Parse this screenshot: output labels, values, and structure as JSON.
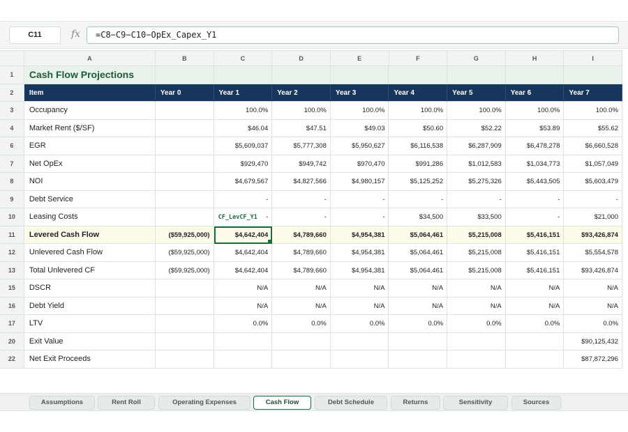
{
  "formula_bar": {
    "cell_ref": "C11",
    "fx_label": "fx",
    "formula": "=C8−C9−C10−OpEx_Capex_Y1"
  },
  "columns": [
    "A",
    "B",
    "C",
    "D",
    "E",
    "F",
    "G",
    "H",
    "I"
  ],
  "sheet": {
    "title_row": "1",
    "title": "Cash Flow Projections",
    "header_row": "2",
    "headers": [
      "Item",
      "Year 0",
      "Year 1",
      "Year 2",
      "Year 3",
      "Year 4",
      "Year 5",
      "Year 6",
      "Year 7"
    ],
    "named_range_tag": "CF_LevCF_Y1",
    "rows": [
      {
        "n": "3",
        "label": "Occupancy",
        "values": [
          "",
          "100.0%",
          "100.0%",
          "100.0%",
          "100.0%",
          "100.0%",
          "100.0%",
          "100.0%"
        ]
      },
      {
        "n": "4",
        "label": "Market Rent ($/SF)",
        "values": [
          "",
          "$46.04",
          "$47.51",
          "$49.03",
          "$50.60",
          "$52.22",
          "$53.89",
          "$55.62"
        ]
      },
      {
        "n": "6",
        "label": "EGR",
        "values": [
          "",
          "$5,609,037",
          "$5,777,308",
          "$5,950,627",
          "$6,116,538",
          "$6,287,909",
          "$6,478,278",
          "$6,660,528"
        ]
      },
      {
        "n": "7",
        "label": "Net OpEx",
        "values": [
          "",
          "$929,470",
          "$949,742",
          "$970,470",
          "$991,286",
          "$1,012,583",
          "$1,034,773",
          "$1,057,049"
        ]
      },
      {
        "n": "8",
        "label": "NOI",
        "values": [
          "",
          "$4,679,567",
          "$4,827,566",
          "$4,980,157",
          "$5,125,252",
          "$5,275,326",
          "$5,443,505",
          "$5,603,479"
        ]
      },
      {
        "n": "9",
        "label": "Debt Service",
        "values": [
          "",
          "-",
          "-",
          "-",
          "-",
          "-",
          "-",
          "-"
        ]
      },
      {
        "n": "10",
        "label": "Leasing Costs",
        "values": [
          "",
          "-",
          "-",
          "-",
          "$34,500",
          "$33,500",
          "-",
          "$21,000"
        ]
      },
      {
        "n": "11",
        "label": "Levered Cash Flow",
        "values": [
          "($59,925,000)",
          "$4,642,404",
          "$4,789,660",
          "$4,954,381",
          "$5,064,461",
          "$5,215,008",
          "$5,416,151",
          "$93,426,874"
        ]
      },
      {
        "n": "12",
        "label": "Unlevered Cash Flow",
        "values": [
          "($59,925,000)",
          "$4,642,404",
          "$4,789,660",
          "$4,954,381",
          "$5,064,461",
          "$5,215,008",
          "$5,416,151",
          "$5,554,578"
        ]
      },
      {
        "n": "13",
        "label": "Total Unlevered CF",
        "values": [
          "($59,925,000)",
          "$4,642,404",
          "$4,789,660",
          "$4,954,381",
          "$5,064,461",
          "$5,215,008",
          "$5,416,151",
          "$93,426,874"
        ]
      },
      {
        "n": "15",
        "label": "DSCR",
        "values": [
          "",
          "N/A",
          "N/A",
          "N/A",
          "N/A",
          "N/A",
          "N/A",
          "N/A"
        ]
      },
      {
        "n": "16",
        "label": "Debt Yield",
        "values": [
          "",
          "N/A",
          "N/A",
          "N/A",
          "N/A",
          "N/A",
          "N/A",
          "N/A"
        ]
      },
      {
        "n": "17",
        "label": "LTV",
        "values": [
          "",
          "0.0%",
          "0.0%",
          "0.0%",
          "0.0%",
          "0.0%",
          "0.0%",
          "0.0%"
        ]
      },
      {
        "n": "20",
        "label": "Exit Value",
        "values": [
          "",
          "",
          "",
          "",
          "",
          "",
          "",
          "$90,125,432"
        ]
      },
      {
        "n": "22",
        "label": "Net Exit Proceeds",
        "values": [
          "",
          "",
          "",
          "",
          "",
          "",
          "",
          "$87,872,296"
        ]
      }
    ]
  },
  "tabs": [
    {
      "label": "Assumptions",
      "active": false
    },
    {
      "label": "Rent Roll",
      "active": false
    },
    {
      "label": "Operating Expenses",
      "active": false
    },
    {
      "label": "Cash Flow",
      "active": true
    },
    {
      "label": "Debt Schedule",
      "active": false
    },
    {
      "label": "Returns",
      "active": false
    },
    {
      "label": "Sensitivity",
      "active": false
    },
    {
      "label": "Sources",
      "active": false
    }
  ],
  "colors": {
    "header_navy": "#17365c",
    "title_green": "#1d5c3a",
    "accent_green": "#1d6b40",
    "highlight_row": "#fdfbea"
  }
}
